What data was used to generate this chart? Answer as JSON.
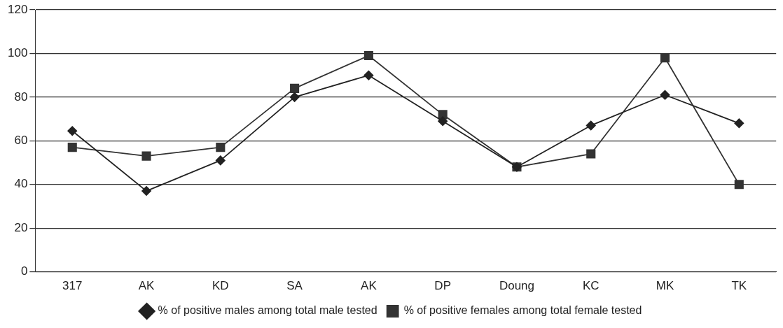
{
  "chart_data": {
    "type": "line",
    "categories": [
      "317",
      "AK",
      "KD",
      "SA",
      "AK",
      "DP",
      "Doung",
      "KC",
      "MK",
      "TK"
    ],
    "series": [
      {
        "name": "% of positive males among total male tested",
        "color": "#222222",
        "marker": "diamond",
        "values": [
          64.5,
          37,
          51,
          80,
          90,
          69,
          48,
          67,
          81,
          68
        ]
      },
      {
        "name": "% of positive females among total female tested",
        "color": "#333333",
        "marker": "square",
        "values": [
          57,
          53,
          57,
          84,
          99,
          72,
          48,
          54,
          98,
          40
        ]
      }
    ],
    "ylim": [
      0,
      120
    ],
    "yticks": [
      0,
      20,
      40,
      60,
      80,
      100,
      120
    ],
    "grid": "y",
    "legend": "bottom"
  }
}
